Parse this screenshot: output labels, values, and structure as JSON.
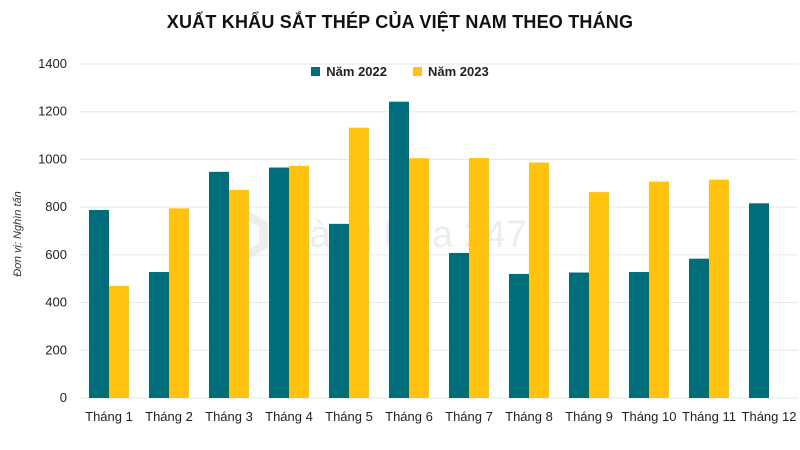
{
  "title": "XUẤT KHẨU SẮT THÉP CỦA VIỆT NAM THEO THÁNG",
  "watermark": "Hàng Hóa 247",
  "colors": {
    "series_2022": "#006d7a",
    "series_2023": "#ffc20e",
    "grid": "#e6e6e6"
  },
  "chart_data": {
    "type": "bar",
    "title": "XUẤT KHẨU SẮT THÉP CỦA VIỆT NAM THEO THÁNG",
    "xlabel": "",
    "ylabel": "Đơn vị: Nghìn tấn",
    "ylim": [
      0,
      1400
    ],
    "yticks": [
      0,
      200,
      400,
      600,
      800,
      1000,
      1200,
      1400
    ],
    "grid": true,
    "legend_position": "top-center",
    "categories": [
      "Tháng 1",
      "Tháng 2",
      "Tháng 3",
      "Tháng 4",
      "Tháng 5",
      "Tháng 6",
      "Tháng 7",
      "Tháng 8",
      "Tháng 9",
      "Tháng 10",
      "Tháng 11",
      "Tháng 12"
    ],
    "series": [
      {
        "name": "Năm 2022",
        "values": [
          788,
          528,
          948,
          966,
          730,
          1242,
          608,
          520,
          526,
          528,
          584,
          816
        ]
      },
      {
        "name": "Năm 2023",
        "values": [
          470,
          795,
          872,
          973,
          1133,
          1005,
          1006,
          987,
          863,
          907,
          915,
          null
        ]
      }
    ]
  }
}
